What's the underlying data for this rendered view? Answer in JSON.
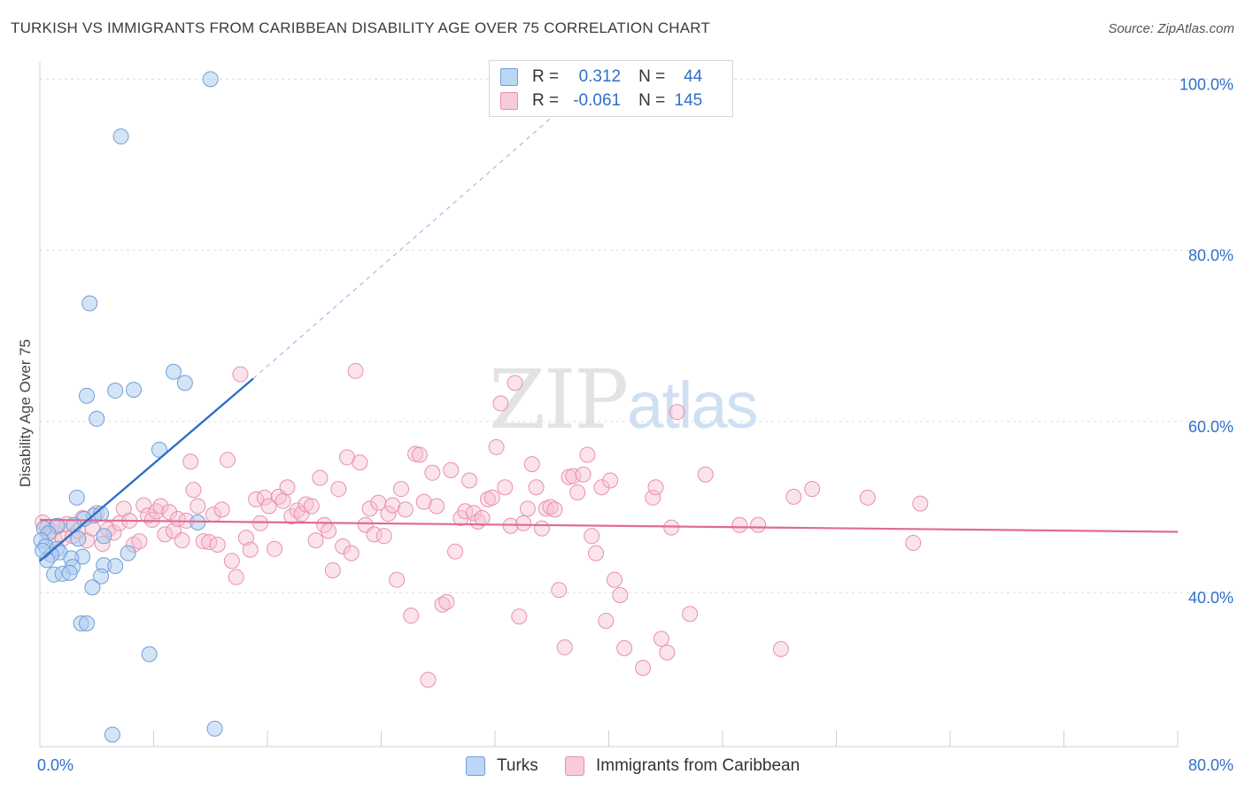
{
  "title": "TURKISH VS IMMIGRANTS FROM CARIBBEAN DISABILITY AGE OVER 75 CORRELATION CHART",
  "source": "Source: ZipAtlas.com",
  "watermark": {
    "zip": "ZIP",
    "atlas": "atlas"
  },
  "legend": {
    "r_label": "R =",
    "n_label": "N =",
    "rows": [
      {
        "r": "0.312",
        "n": "44"
      },
      {
        "r": "-0.061",
        "n": "145"
      }
    ]
  },
  "bottom_legend": {
    "series1": "Turks",
    "series2": "Immigrants from Caribbean"
  },
  "chart_data": {
    "type": "scatter",
    "title": "TURKISH VS IMMIGRANTS FROM CARIBBEAN DISABILITY AGE OVER 75 CORRELATION CHART",
    "xlabel": "",
    "ylabel": "Disability Age Over 75",
    "xlim": [
      0,
      80
    ],
    "ylim": [
      22,
      102
    ],
    "x_tick_labels": [
      "0.0%",
      "80.0%"
    ],
    "y_ticks": [
      40,
      60,
      80,
      100
    ],
    "y_tick_labels": [
      "40.0%",
      "60.0%",
      "80.0%",
      "100.0%"
    ],
    "colors": {
      "turks_fill": "#a9c9f0",
      "turks_stroke": "#6f9fd8",
      "turks_line": "#2f6fc8",
      "carib_fill": "#f6c0d3",
      "carib_stroke": "#e890b0",
      "carib_line": "#e16a96",
      "value_text": "#2f6fc8"
    },
    "series": [
      {
        "name": "Turks",
        "r": 0.312,
        "n": 44,
        "trend": {
          "x": [
            0,
            15
          ],
          "y": [
            43.7,
            65.0
          ]
        },
        "trend_dashed": {
          "x": [
            15,
            37
          ],
          "y": [
            65.0,
            97.0
          ]
        },
        "points": [
          [
            12.0,
            100.0
          ],
          [
            5.7,
            93.3
          ],
          [
            3.5,
            73.8
          ],
          [
            9.4,
            65.8
          ],
          [
            10.2,
            64.5
          ],
          [
            3.3,
            63.0
          ],
          [
            5.3,
            63.6
          ],
          [
            6.6,
            63.7
          ],
          [
            4.0,
            60.3
          ],
          [
            8.4,
            56.7
          ],
          [
            2.6,
            51.1
          ],
          [
            3.8,
            49.0
          ],
          [
            4.3,
            49.2
          ],
          [
            3.1,
            48.6
          ],
          [
            2.4,
            47.9
          ],
          [
            11.1,
            48.2
          ],
          [
            0.3,
            47.5
          ],
          [
            1.2,
            47.8
          ],
          [
            0.6,
            46.9
          ],
          [
            2.7,
            46.3
          ],
          [
            4.5,
            46.6
          ],
          [
            0.1,
            46.1
          ],
          [
            0.4,
            45.4
          ],
          [
            1.2,
            45.1
          ],
          [
            1.4,
            44.7
          ],
          [
            0.8,
            44.4
          ],
          [
            3.0,
            44.2
          ],
          [
            6.2,
            44.6
          ],
          [
            0.5,
            43.8
          ],
          [
            2.2,
            44.0
          ],
          [
            2.3,
            43.0
          ],
          [
            4.5,
            43.2
          ],
          [
            5.3,
            43.1
          ],
          [
            1.0,
            42.1
          ],
          [
            1.6,
            42.2
          ],
          [
            2.1,
            42.3
          ],
          [
            4.3,
            41.9
          ],
          [
            3.7,
            40.6
          ],
          [
            2.9,
            36.4
          ],
          [
            3.3,
            36.4
          ],
          [
            7.7,
            32.8
          ],
          [
            12.3,
            24.1
          ],
          [
            5.1,
            23.4
          ],
          [
            0.2,
            44.9
          ]
        ]
      },
      {
        "name": "Immigrants from Caribbean",
        "r": -0.061,
        "n": 145,
        "trend": {
          "x": [
            0,
            80
          ],
          "y": [
            48.5,
            47.1
          ]
        },
        "points": [
          [
            0.2,
            48.2
          ],
          [
            0.5,
            47.6
          ],
          [
            0.8,
            47.2
          ],
          [
            1.0,
            46.4
          ],
          [
            1.3,
            47.8
          ],
          [
            1.6,
            46.3
          ],
          [
            1.9,
            48.0
          ],
          [
            2.3,
            46.6
          ],
          [
            2.7,
            47.2
          ],
          [
            3.0,
            48.7
          ],
          [
            3.3,
            46.1
          ],
          [
            3.7,
            47.5
          ],
          [
            4.0,
            49.3
          ],
          [
            4.4,
            45.7
          ],
          [
            4.8,
            47.4
          ],
          [
            5.2,
            47.0
          ],
          [
            5.6,
            48.1
          ],
          [
            5.9,
            49.8
          ],
          [
            6.3,
            48.4
          ],
          [
            6.6,
            45.6
          ],
          [
            7.0,
            46.0
          ],
          [
            7.3,
            50.2
          ],
          [
            7.6,
            49.0
          ],
          [
            7.9,
            48.5
          ],
          [
            8.2,
            49.5
          ],
          [
            8.5,
            50.1
          ],
          [
            8.8,
            46.8
          ],
          [
            9.1,
            49.4
          ],
          [
            9.4,
            47.2
          ],
          [
            9.7,
            48.6
          ],
          [
            10.0,
            46.1
          ],
          [
            10.3,
            48.4
          ],
          [
            10.6,
            55.3
          ],
          [
            10.8,
            52.0
          ],
          [
            11.1,
            50.1
          ],
          [
            11.5,
            46.0
          ],
          [
            11.9,
            45.9
          ],
          [
            12.2,
            49.1
          ],
          [
            12.5,
            45.6
          ],
          [
            12.8,
            49.7
          ],
          [
            13.2,
            55.5
          ],
          [
            13.5,
            43.7
          ],
          [
            13.8,
            41.8
          ],
          [
            14.1,
            65.5
          ],
          [
            14.5,
            46.4
          ],
          [
            14.8,
            45.0
          ],
          [
            15.2,
            50.9
          ],
          [
            15.5,
            48.1
          ],
          [
            15.8,
            51.1
          ],
          [
            16.1,
            50.1
          ],
          [
            16.5,
            45.1
          ],
          [
            16.8,
            51.2
          ],
          [
            17.1,
            50.7
          ],
          [
            17.4,
            52.3
          ],
          [
            17.7,
            48.9
          ],
          [
            18.1,
            49.6
          ],
          [
            18.4,
            49.2
          ],
          [
            18.7,
            50.3
          ],
          [
            19.1,
            50.1
          ],
          [
            19.4,
            46.1
          ],
          [
            19.7,
            53.4
          ],
          [
            20.0,
            47.9
          ],
          [
            20.3,
            47.2
          ],
          [
            20.6,
            42.6
          ],
          [
            21.0,
            52.1
          ],
          [
            21.3,
            45.4
          ],
          [
            21.6,
            55.8
          ],
          [
            21.9,
            44.6
          ],
          [
            22.2,
            65.9
          ],
          [
            22.5,
            55.2
          ],
          [
            22.9,
            47.9
          ],
          [
            23.2,
            49.8
          ],
          [
            23.5,
            46.8
          ],
          [
            23.8,
            50.5
          ],
          [
            24.2,
            46.6
          ],
          [
            24.5,
            49.2
          ],
          [
            24.8,
            50.2
          ],
          [
            25.1,
            41.5
          ],
          [
            25.4,
            52.1
          ],
          [
            25.7,
            49.7
          ],
          [
            26.1,
            37.3
          ],
          [
            26.4,
            56.2
          ],
          [
            26.7,
            56.1
          ],
          [
            27.0,
            50.6
          ],
          [
            27.3,
            29.8
          ],
          [
            27.6,
            54.0
          ],
          [
            27.9,
            50.1
          ],
          [
            28.3,
            38.6
          ],
          [
            28.6,
            38.9
          ],
          [
            28.9,
            54.3
          ],
          [
            29.2,
            44.8
          ],
          [
            29.6,
            48.7
          ],
          [
            29.9,
            49.5
          ],
          [
            30.2,
            53.1
          ],
          [
            30.5,
            49.3
          ],
          [
            30.8,
            48.3
          ],
          [
            31.1,
            48.7
          ],
          [
            31.5,
            50.9
          ],
          [
            31.8,
            51.1
          ],
          [
            32.1,
            57.0
          ],
          [
            32.4,
            62.1
          ],
          [
            32.7,
            52.3
          ],
          [
            33.1,
            47.8
          ],
          [
            33.4,
            64.5
          ],
          [
            33.7,
            37.2
          ],
          [
            34.0,
            48.1
          ],
          [
            34.3,
            49.8
          ],
          [
            34.6,
            55.0
          ],
          [
            34.9,
            52.3
          ],
          [
            35.3,
            47.5
          ],
          [
            35.6,
            49.8
          ],
          [
            35.9,
            50.0
          ],
          [
            36.2,
            49.7
          ],
          [
            36.5,
            40.3
          ],
          [
            36.9,
            33.6
          ],
          [
            37.2,
            53.5
          ],
          [
            37.5,
            53.6
          ],
          [
            37.8,
            51.7
          ],
          [
            38.2,
            53.8
          ],
          [
            38.5,
            56.1
          ],
          [
            38.8,
            46.6
          ],
          [
            39.1,
            44.6
          ],
          [
            39.5,
            52.3
          ],
          [
            39.8,
            36.7
          ],
          [
            40.1,
            53.1
          ],
          [
            40.4,
            41.5
          ],
          [
            40.8,
            39.7
          ],
          [
            41.1,
            33.5
          ],
          [
            42.4,
            31.2
          ],
          [
            43.1,
            51.1
          ],
          [
            43.3,
            52.3
          ],
          [
            43.7,
            34.6
          ],
          [
            44.1,
            33.0
          ],
          [
            44.4,
            47.6
          ],
          [
            44.8,
            61.1
          ],
          [
            45.7,
            37.5
          ],
          [
            46.8,
            53.8
          ],
          [
            49.2,
            47.9
          ],
          [
            50.5,
            47.9
          ],
          [
            52.1,
            33.4
          ],
          [
            53.0,
            51.2
          ],
          [
            54.3,
            52.1
          ],
          [
            58.2,
            51.1
          ],
          [
            61.4,
            45.8
          ],
          [
            61.9,
            50.4
          ]
        ]
      }
    ]
  }
}
